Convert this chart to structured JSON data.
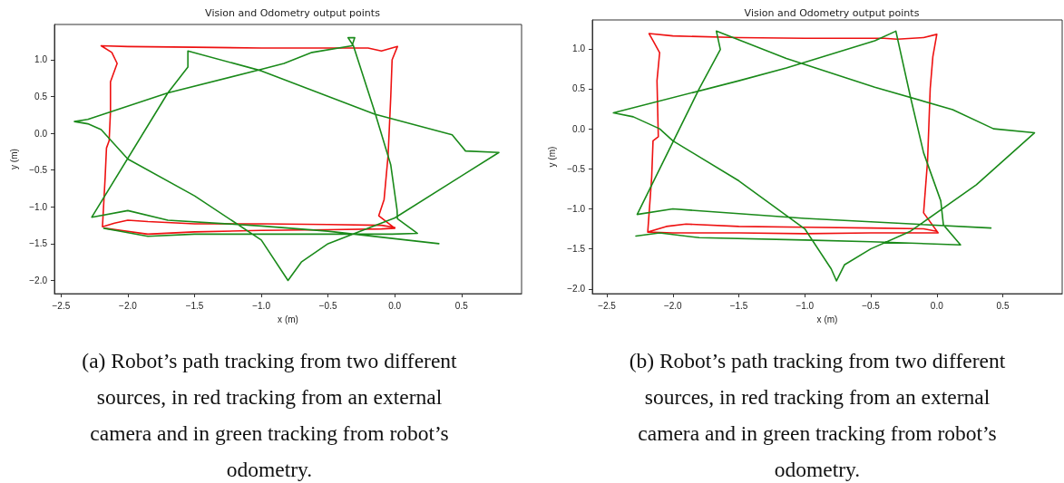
{
  "chart_data": [
    {
      "type": "line",
      "title": "Vision and Odometry output points",
      "xlabel": "x (m)",
      "ylabel": "y (m)",
      "grid": false,
      "marker": "none",
      "line_style": "solid",
      "xlim": [
        -2.55,
        0.95
      ],
      "ylim": [
        -2.18,
        1.48
      ],
      "xticks": [
        {
          "value": -2.5,
          "label": "−2.5"
        },
        {
          "value": -2.0,
          "label": "−2.0"
        },
        {
          "value": -1.5,
          "label": "−1.5"
        },
        {
          "value": -1.0,
          "label": "−1.0"
        },
        {
          "value": -0.5,
          "label": "−0.5"
        },
        {
          "value": 0.0,
          "label": "0.0"
        },
        {
          "value": 0.5,
          "label": "0.5"
        }
      ],
      "yticks": [
        {
          "value": -2.0,
          "label": "−2.0"
        },
        {
          "value": -1.5,
          "label": "−1.5"
        },
        {
          "value": -1.0,
          "label": "−1.0"
        },
        {
          "value": -0.5,
          "label": "−0.5"
        },
        {
          "value": 0.0,
          "label": "0.0"
        },
        {
          "value": 0.5,
          "label": "0.5"
        },
        {
          "value": 1.0,
          "label": "1.0"
        }
      ],
      "series": [
        {
          "color": "#ee1111",
          "x": [
            -2.17,
            -1.85,
            -1.5,
            -1.0,
            -0.5,
            -0.1,
            0.0,
            -0.12,
            -0.08,
            -0.05,
            -0.03,
            -0.02,
            0.02,
            -0.1,
            -0.2,
            -0.4,
            -1.0,
            -1.5,
            -2.0,
            -2.2,
            -2.12,
            -2.08,
            -2.13,
            -2.13,
            -2.14,
            -2.16,
            -2.17,
            -2.19,
            -2.1,
            -2.0,
            -1.85,
            -1.5,
            -1.0,
            -0.5,
            -0.1,
            0.0
          ],
          "values": [
            -1.29,
            -1.37,
            -1.34,
            -1.32,
            -1.31,
            -1.3,
            -1.29,
            -1.12,
            -0.9,
            -0.3,
            0.5,
            1.0,
            1.18,
            1.12,
            1.16,
            1.16,
            1.16,
            1.17,
            1.18,
            1.19,
            1.1,
            0.95,
            0.7,
            0.3,
            -0.1,
            -0.2,
            -0.6,
            -1.27,
            -1.22,
            -1.18,
            -1.2,
            -1.23,
            -1.23,
            -1.24,
            -1.25,
            -1.28
          ]
        },
        {
          "color": "#1a8a1a",
          "x": [
            -2.18,
            -1.85,
            -1.5,
            -1.0,
            -0.5,
            -0.02,
            0.17,
            0.02,
            0.017,
            -0.03,
            -0.15,
            -0.31,
            -0.35,
            -0.3,
            -0.32,
            -0.62,
            -0.83,
            -1.0,
            -1.7,
            -2.3,
            -2.4,
            -2.3,
            -2.2,
            -2.1,
            -2.0,
            -1.5,
            -1.0,
            -0.8,
            -0.7,
            -0.5,
            0.0,
            0.78,
            0.53,
            0.43,
            -0.15,
            -1.0,
            -1.55,
            -1.55,
            -1.7,
            -2.27,
            -2.0,
            -1.7,
            -1.0,
            -0.5,
            0.33
          ],
          "values": [
            -1.29,
            -1.4,
            -1.37,
            -1.37,
            -1.37,
            -1.37,
            -1.36,
            -1.16,
            -1.04,
            -0.43,
            0.29,
            1.19,
            1.3,
            1.3,
            1.19,
            1.1,
            0.95,
            0.87,
            0.55,
            0.19,
            0.16,
            0.13,
            0.05,
            -0.15,
            -0.35,
            -0.85,
            -1.45,
            -2.0,
            -1.75,
            -1.5,
            -1.15,
            -0.26,
            -0.24,
            -0.02,
            0.26,
            0.85,
            1.12,
            0.9,
            0.55,
            -1.14,
            -1.05,
            -1.18,
            -1.26,
            -1.33,
            -1.5
          ]
        }
      ],
      "annotations": [
        "(a) Robot’s path tracking from two different sources, in red tracking from an external camera and in green tracking from robot’s odometry."
      ]
    },
    {
      "type": "line",
      "title": "Vision and Odometry output points",
      "xlabel": "x (m)",
      "ylabel": "y (m)",
      "grid": false,
      "marker": "none",
      "line_style": "solid",
      "xlim": [
        -2.61,
        0.95
      ],
      "ylim": [
        -2.06,
        1.36
      ],
      "xticks": [
        {
          "value": -2.5,
          "label": "−2.5"
        },
        {
          "value": -2.0,
          "label": "−2.0"
        },
        {
          "value": -1.5,
          "label": "−1.5"
        },
        {
          "value": -1.0,
          "label": "−1.0"
        },
        {
          "value": -0.5,
          "label": "−0.5"
        },
        {
          "value": 0.0,
          "label": "0.0"
        },
        {
          "value": 0.5,
          "label": "0.5"
        }
      ],
      "yticks": [
        {
          "value": -2.0,
          "label": "−2.0"
        },
        {
          "value": -1.5,
          "label": "−1.5"
        },
        {
          "value": -1.0,
          "label": "−1.0"
        },
        {
          "value": -0.5,
          "label": "−0.5"
        },
        {
          "value": 0.0,
          "label": "0.0"
        },
        {
          "value": 0.5,
          "label": "0.5"
        },
        {
          "value": 1.0,
          "label": "1.0"
        }
      ],
      "series": [
        {
          "color": "#ee1111",
          "x": [
            -2.19,
            -2.0,
            -1.5,
            -1.0,
            -0.5,
            -0.1,
            0.01,
            -0.1,
            -0.07,
            -0.05,
            -0.03,
            0.0,
            -0.1,
            -0.3,
            -0.4,
            -1.0,
            -1.5,
            -2.0,
            -2.18,
            -2.15,
            -2.1,
            -2.12,
            -2.11,
            -2.15,
            -2.16,
            -2.19,
            -2.05,
            -1.9,
            -1.5,
            -1.0,
            -0.5,
            -0.1,
            0.0
          ],
          "values": [
            -1.29,
            -1.3,
            -1.3,
            -1.31,
            -1.3,
            -1.3,
            -1.3,
            -1.05,
            -0.4,
            0.5,
            0.9,
            1.18,
            1.14,
            1.12,
            1.13,
            1.13,
            1.14,
            1.16,
            1.19,
            1.1,
            0.95,
            0.6,
            -0.1,
            -0.15,
            -0.6,
            -1.29,
            -1.22,
            -1.19,
            -1.22,
            -1.23,
            -1.24,
            -1.25,
            -1.28
          ]
        },
        {
          "color": "#1a8a1a",
          "x": [
            -2.28,
            -2.1,
            -1.8,
            -1.0,
            -0.5,
            0.18,
            0.05,
            0.03,
            -0.1,
            -0.2,
            -0.31,
            -0.47,
            -1.14,
            -1.5,
            -2.45,
            -2.3,
            -2.1,
            -2.0,
            -1.5,
            -1.0,
            -0.8,
            -0.76,
            -0.7,
            -0.5,
            -0.2,
            0.3,
            0.74,
            0.43,
            0.12,
            -0.47,
            -1.14,
            -1.67,
            -1.64,
            -1.8,
            -2.27,
            -2.0,
            -1.5,
            -1.0,
            0.41
          ],
          "values": [
            -1.34,
            -1.3,
            -1.36,
            -1.39,
            -1.41,
            -1.45,
            -1.2,
            -0.9,
            -0.3,
            0.4,
            1.22,
            1.1,
            0.76,
            0.6,
            0.2,
            0.15,
            0.0,
            -0.15,
            -0.65,
            -1.25,
            -1.75,
            -1.9,
            -1.7,
            -1.5,
            -1.28,
            -0.7,
            -0.05,
            0.0,
            0.24,
            0.52,
            0.88,
            1.22,
            0.99,
            0.5,
            -1.07,
            -1.0,
            -1.06,
            -1.12,
            -1.24
          ]
        }
      ],
      "annotations": [
        "(b) Robot’s path tracking from two different sources, in red tracking from an external camera and in green tracking from robot’s odometry."
      ]
    }
  ]
}
